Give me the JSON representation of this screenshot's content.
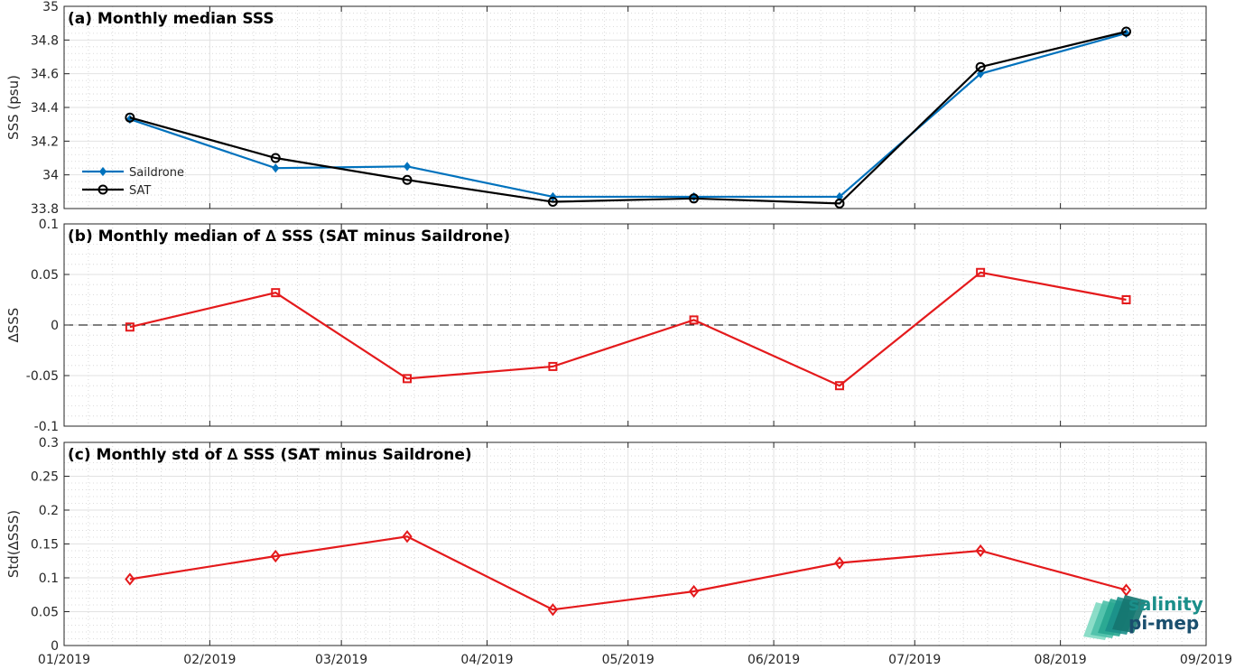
{
  "chart_data": [
    {
      "type": "line",
      "title": "(a) Monthly median SSS",
      "ylabel": "SSS (psu)",
      "ylim": [
        33.8,
        35
      ],
      "yticks": [
        "33.8",
        "34",
        "34.2",
        "34.4",
        "34.6",
        "34.8",
        "35"
      ],
      "x": [
        "2019-01-15",
        "2019-02-15",
        "2019-03-15",
        "2019-04-15",
        "2019-05-15",
        "2019-06-15",
        "2019-07-15",
        "2019-08-15"
      ],
      "legend_position": "left",
      "series": [
        {
          "name": "Saildrone",
          "color": "#0072bd",
          "marker": "diamond",
          "values": [
            34.33,
            34.04,
            34.05,
            33.87,
            33.87,
            33.87,
            34.6,
            34.84
          ]
        },
        {
          "name": "SAT",
          "color": "#000000",
          "marker": "circle",
          "values": [
            34.34,
            34.1,
            33.97,
            33.84,
            33.86,
            33.83,
            34.64,
            34.85
          ]
        }
      ]
    },
    {
      "type": "line",
      "title": "(b) Monthly median of ∆ SSS (SAT minus Saildrone)",
      "ylabel": "∆SSS",
      "ylim": [
        -0.1,
        0.1
      ],
      "yticks": [
        "-0.1",
        "-0.05",
        "0",
        "0.05",
        "0.1"
      ],
      "reference_line": 0,
      "x": [
        "2019-01-15",
        "2019-02-15",
        "2019-03-15",
        "2019-04-15",
        "2019-05-15",
        "2019-06-15",
        "2019-07-15",
        "2019-08-15"
      ],
      "series": [
        {
          "color": "#e41a1c",
          "marker": "square",
          "values": [
            -0.002,
            0.032,
            -0.053,
            -0.041,
            0.005,
            -0.06,
            0.052,
            0.025
          ]
        }
      ]
    },
    {
      "type": "line",
      "title": "(c) Monthly std of ∆ SSS (SAT minus Saildrone)",
      "ylabel": "Std(∆SSS)",
      "ylim": [
        0,
        0.3
      ],
      "yticks": [
        "0",
        "0.05",
        "0.1",
        "0.15",
        "0.2",
        "0.25",
        "0.3"
      ],
      "x": [
        "2019-01-15",
        "2019-02-15",
        "2019-03-15",
        "2019-04-15",
        "2019-05-15",
        "2019-06-15",
        "2019-07-15",
        "2019-08-15"
      ],
      "xticks": [
        "01/2019",
        "02/2019",
        "03/2019",
        "04/2019",
        "05/2019",
        "06/2019",
        "07/2019",
        "08/2019",
        "09/2019"
      ],
      "series": [
        {
          "color": "#e41a1c",
          "marker": "diamond",
          "values": [
            0.098,
            0.132,
            0.161,
            0.053,
            0.08,
            0.122,
            0.14,
            0.082
          ]
        }
      ]
    }
  ],
  "logo": {
    "line1": "salinity",
    "line2": "pi-mep"
  }
}
